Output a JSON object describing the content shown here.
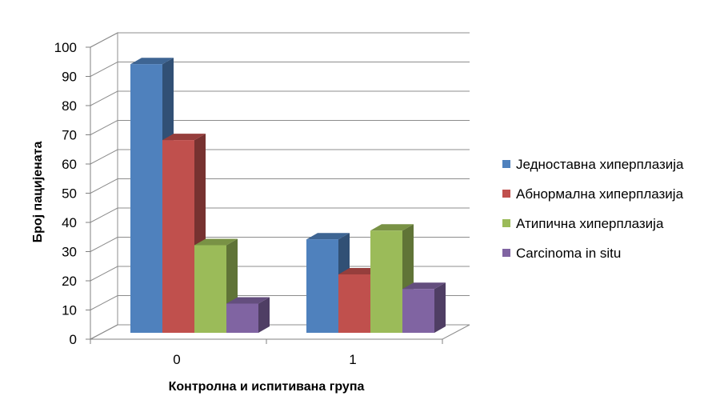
{
  "chart_data": {
    "type": "bar",
    "categories": [
      "0",
      "1"
    ],
    "series": [
      {
        "name": "Једноставна хиперплазија",
        "values": [
          92,
          32
        ],
        "color": "#4F81BD"
      },
      {
        "name": "Абнормална хиперплазија",
        "values": [
          66,
          20
        ],
        "color": "#C0504D"
      },
      {
        "name": "Атипична хиперплазија",
        "values": [
          30,
          35
        ],
        "color": "#9BBB59"
      },
      {
        "name": "Carcinoma in situ",
        "values": [
          10,
          15
        ],
        "color": "#8064A2"
      }
    ],
    "xlabel": "Контролна и испитивана група",
    "ylabel": "Број пацијената",
    "ylim": [
      0,
      100
    ],
    "yticks": [
      0,
      10,
      20,
      30,
      40,
      50,
      60,
      70,
      80,
      90,
      100
    ],
    "grid": true,
    "legend_position": "right",
    "style": "3d-clustered-column"
  }
}
